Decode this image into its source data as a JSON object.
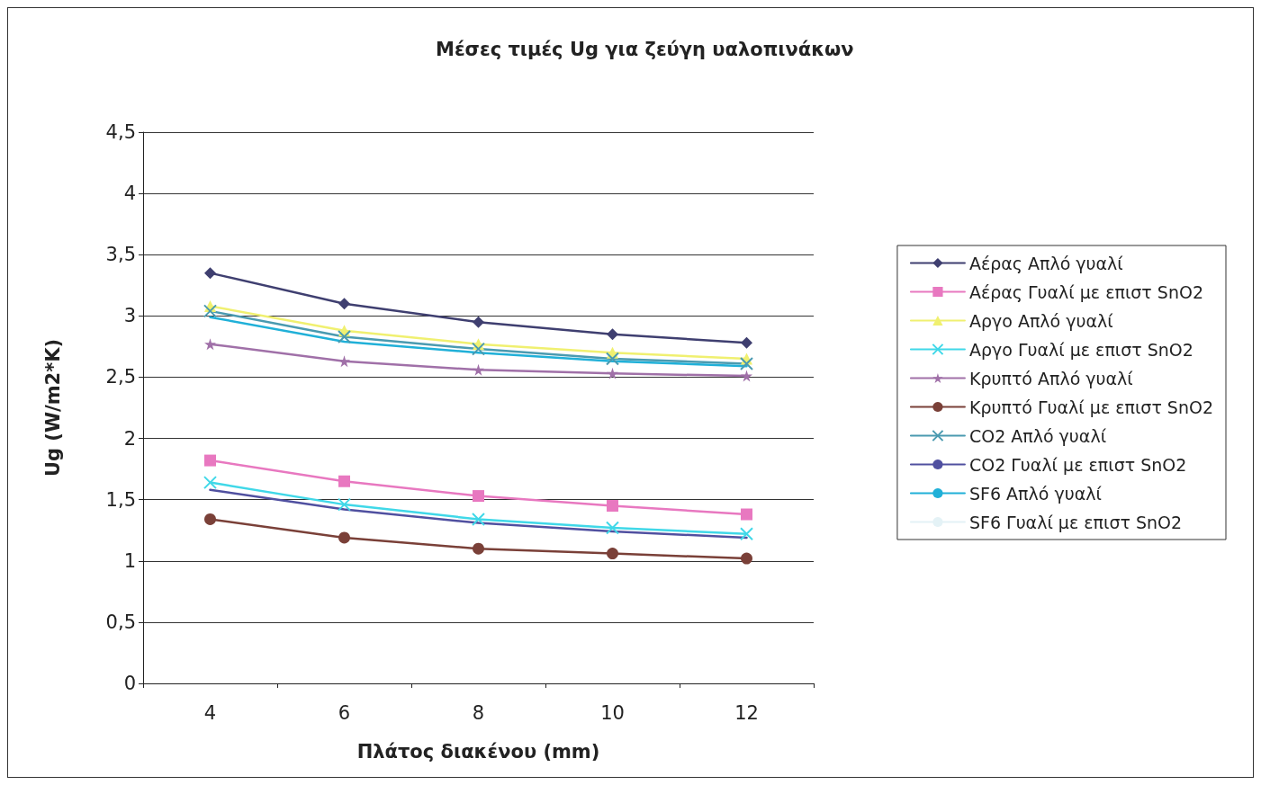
{
  "chart_data": {
    "type": "line",
    "title": "Μέσες τιμές Ug για ζεύγη υαλοπινάκων",
    "xlabel": "Πλάτος διακένου (mm)",
    "ylabel": "Ug (W/m2*K)",
    "categories": [
      "4",
      "6",
      "8",
      "10",
      "12"
    ],
    "series": [
      {
        "name": "Αέρας Απλό γυαλί",
        "color": "#3f3f70",
        "marker": "diamond",
        "values": [
          3.35,
          3.1,
          2.95,
          2.85,
          2.78
        ]
      },
      {
        "name": "Αέρας Γυαλί με επιστ SnO2",
        "color": "#e878c0",
        "marker": "square",
        "values": [
          1.82,
          1.65,
          1.53,
          1.45,
          1.38
        ]
      },
      {
        "name": "Αργο Απλό γυαλί",
        "color": "#f0f070",
        "marker": "triangle",
        "values": [
          3.08,
          2.88,
          2.77,
          2.7,
          2.65
        ]
      },
      {
        "name": "Αργο Γυαλί με επιστ SnO2",
        "color": "#40d8e8",
        "marker": "cross",
        "values": [
          1.64,
          1.46,
          1.34,
          1.27,
          1.22
        ]
      },
      {
        "name": "Κρυπτό Απλό γυαλί",
        "color": "#a070a8",
        "marker": "star",
        "values": [
          2.77,
          2.63,
          2.56,
          2.53,
          2.51
        ]
      },
      {
        "name": "Κρυπτό Γυαλί με επιστ SnO2",
        "color": "#7a4038",
        "marker": "circle",
        "values": [
          1.34,
          1.19,
          1.1,
          1.06,
          1.02
        ]
      },
      {
        "name": "CO2 Απλό γυαλί",
        "color": "#4a9ab0",
        "marker": "cross",
        "values": [
          3.04,
          2.83,
          2.73,
          2.65,
          2.61
        ]
      },
      {
        "name": "CO2 Γυαλί με επιστ SnO2",
        "color": "#5050a0",
        "marker": "none",
        "values": [
          1.58,
          1.42,
          1.31,
          1.24,
          1.19
        ]
      },
      {
        "name": "SF6 Απλό γυαλί",
        "color": "#20b0d8",
        "marker": "none",
        "values": [
          2.99,
          2.79,
          2.7,
          2.63,
          2.59
        ]
      },
      {
        "name": "SF6 Γυαλί με επιστ SnO2",
        "color": "#e4f2f6",
        "marker": "none",
        "values": [
          null,
          null,
          null,
          null,
          null
        ]
      }
    ],
    "ylim": [
      0,
      4.5
    ],
    "yticks": [
      0,
      {
        "value": 0.5,
        "label": "0,5"
      },
      1,
      {
        "value": 1.5,
        "label": "1,5"
      },
      2,
      {
        "value": 2.5,
        "label": "2,5"
      },
      3,
      {
        "value": 3.5,
        "label": "3,5"
      },
      4,
      {
        "value": 4.5,
        "label": "4,5"
      }
    ],
    "grid": "y",
    "legend": "right"
  }
}
